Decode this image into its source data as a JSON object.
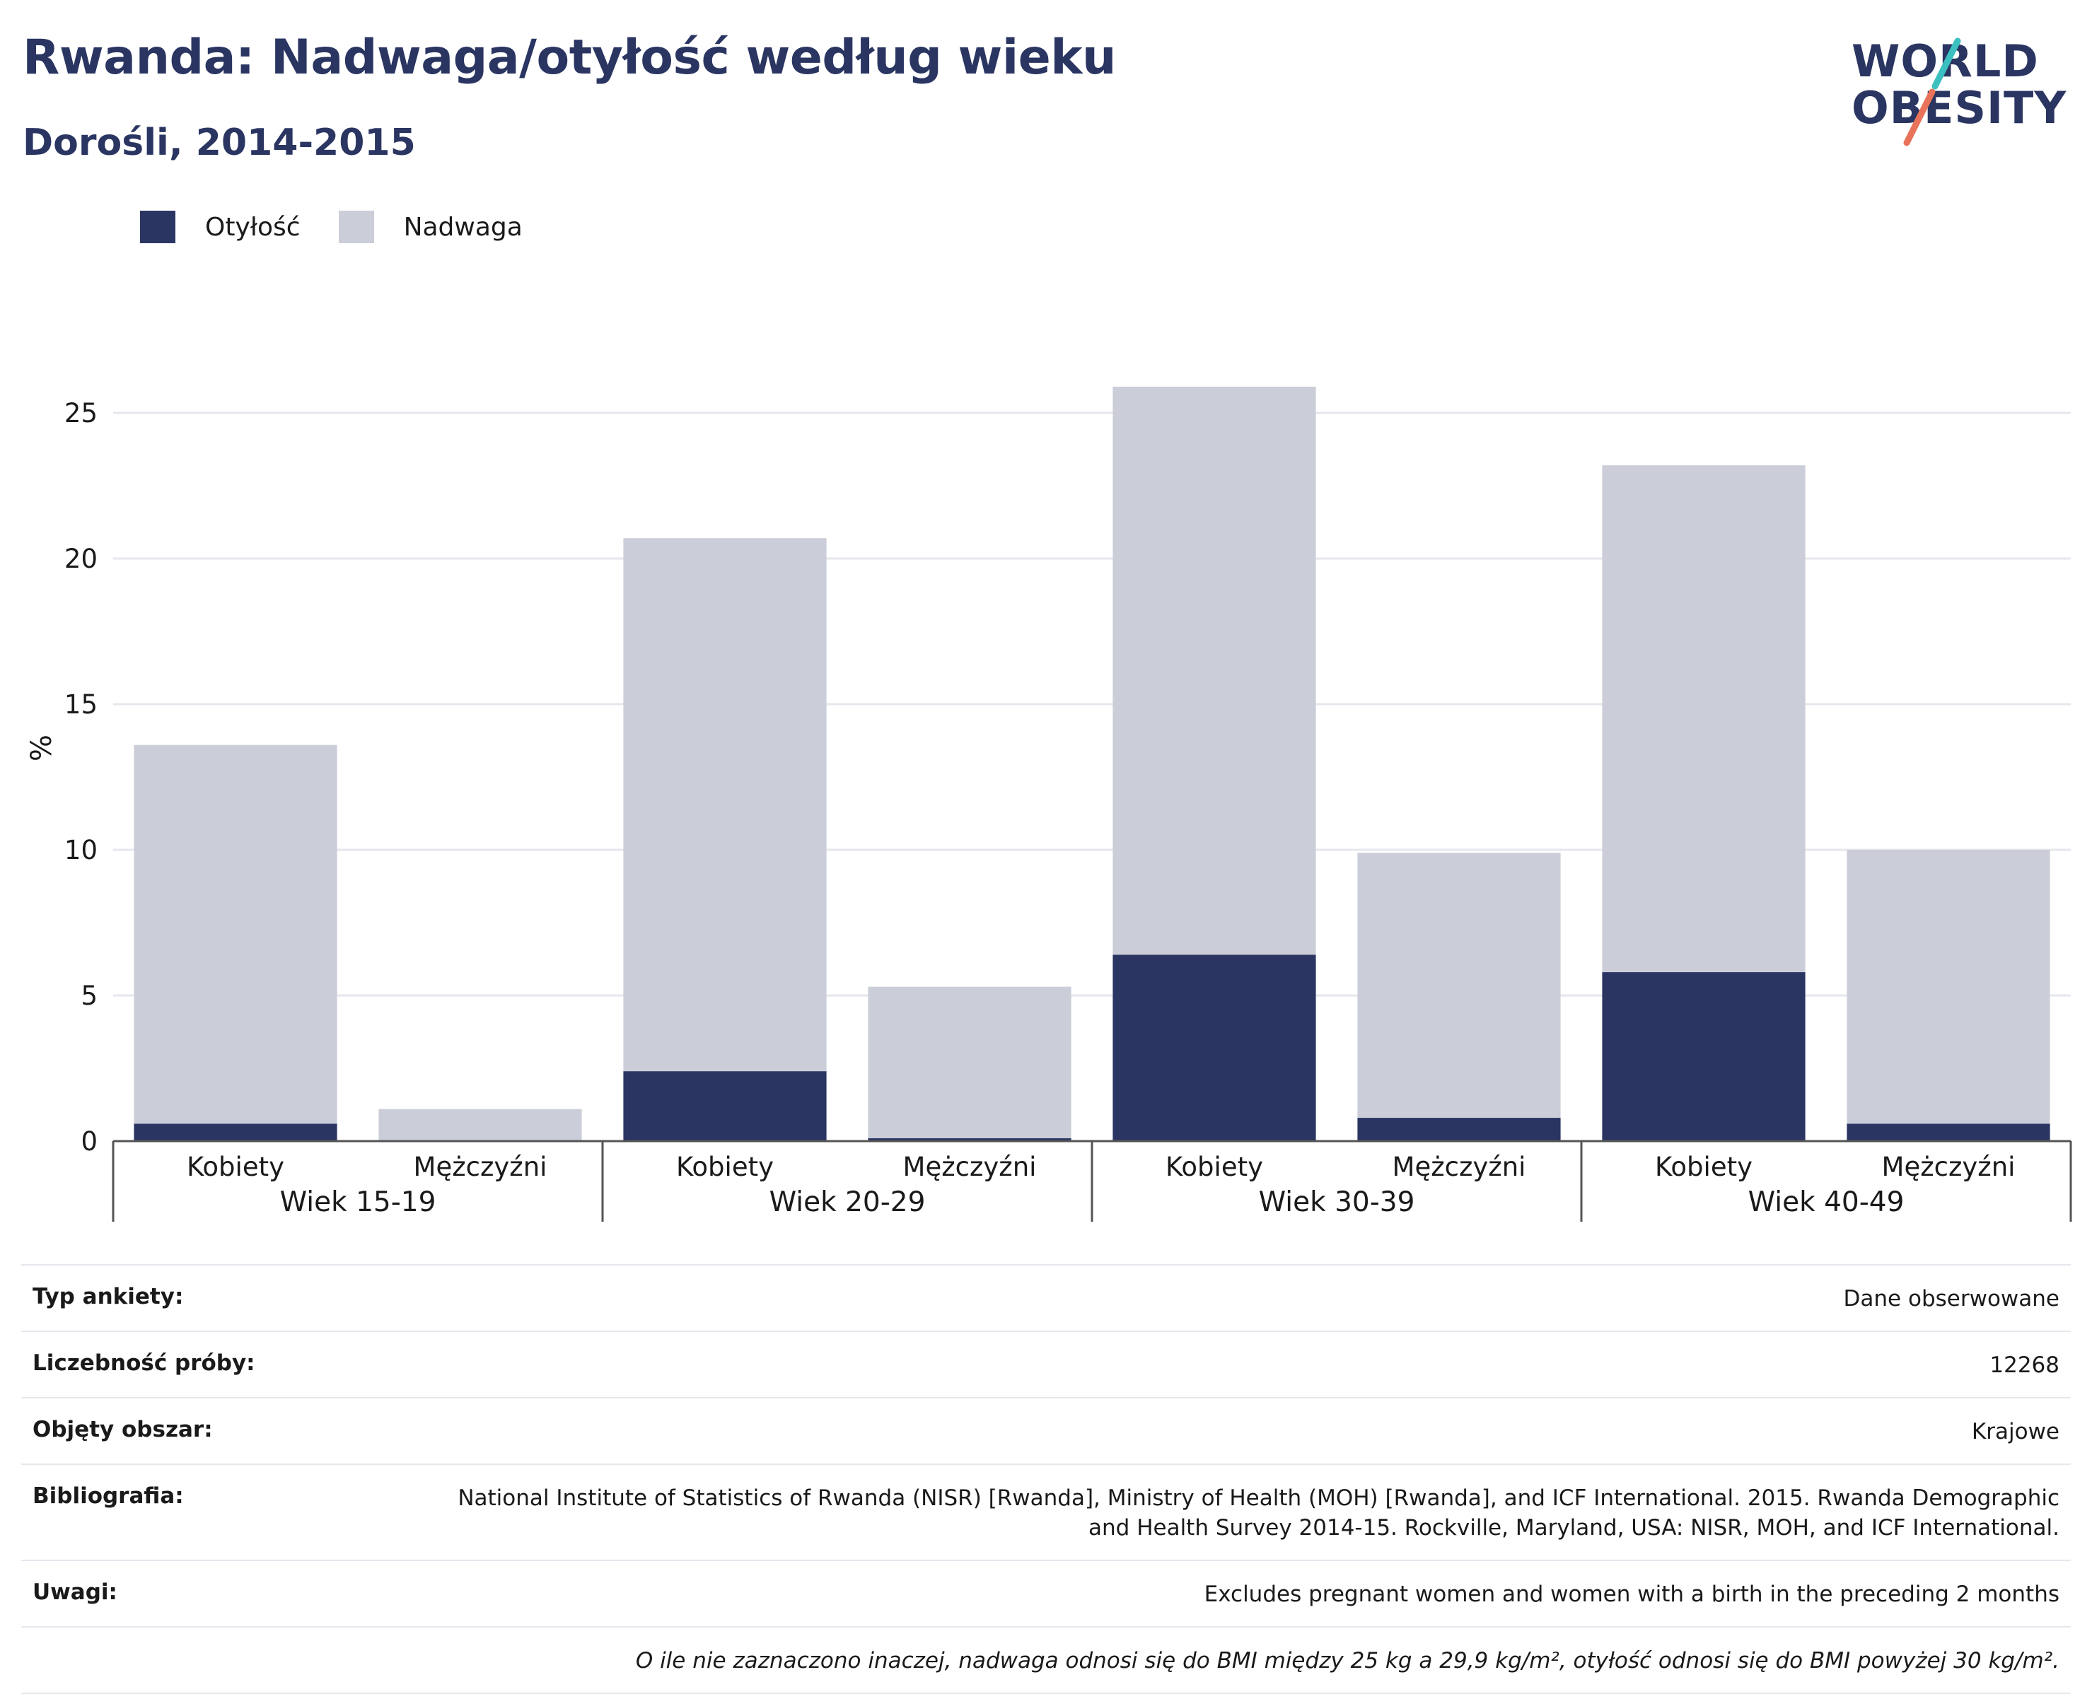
{
  "header": {
    "title": "Rwanda: Nadwaga/otyłość według wieku",
    "subtitle": "Dorośli, 2014-2015"
  },
  "logo": {
    "line1": "WORLD",
    "line2": "OBESITY",
    "alt_text": "World Obesity"
  },
  "colors": {
    "obesity": "#2a3562",
    "overweight": "#cbcdd9",
    "accent_teal": "#3bbfbf",
    "accent_coral": "#e8735a"
  },
  "chart_data": {
    "type": "bar",
    "stacked": true,
    "ylabel": "%",
    "ylim": [
      0,
      27.5
    ],
    "yticks": [
      0,
      5,
      10,
      15,
      20,
      25
    ],
    "grid": true,
    "legend_position": "top-left",
    "groups": [
      {
        "label": "Wiek 15-19",
        "categories": [
          "Kobiety",
          "Mężczyźni"
        ]
      },
      {
        "label": "Wiek 20-29",
        "categories": [
          "Kobiety",
          "Mężczyźni"
        ]
      },
      {
        "label": "Wiek 30-39",
        "categories": [
          "Kobiety",
          "Mężczyźni"
        ]
      },
      {
        "label": "Wiek 40-49",
        "categories": [
          "Kobiety",
          "Mężczyźni"
        ]
      }
    ],
    "series": [
      {
        "name": "Otyłość",
        "values": [
          0.6,
          0.0,
          2.4,
          0.1,
          6.4,
          0.8,
          5.8,
          0.6
        ]
      },
      {
        "name": "Nadwaga",
        "values": [
          13.0,
          1.1,
          18.3,
          5.2,
          19.5,
          9.1,
          17.4,
          9.4
        ]
      }
    ]
  },
  "info": {
    "rows": [
      {
        "label": "Typ ankiety:",
        "value": "Dane obserwowane"
      },
      {
        "label": "Liczebność próby:",
        "value": "12268"
      },
      {
        "label": "Objęty obszar:",
        "value": "Krajowe"
      },
      {
        "label": "Bibliografia:",
        "value": "National Institute of Statistics of Rwanda (NISR) [Rwanda], Ministry of Health (MOH) [Rwanda], and ICF International. 2015. Rwanda Demographic and Health Survey 2014-15. Rockville, Maryland, USA: NISR, MOH, and ICF International."
      },
      {
        "label": "Uwagi:",
        "value": "Excludes pregnant women and women with a birth in the preceding 2 months"
      }
    ],
    "footnote": "O ile nie zaznaczono inaczej, nadwaga odnosi się do BMI między 25 kg a 29,9 kg/m², otyłość odnosi się do BMI powyżej 30 kg/m²."
  }
}
